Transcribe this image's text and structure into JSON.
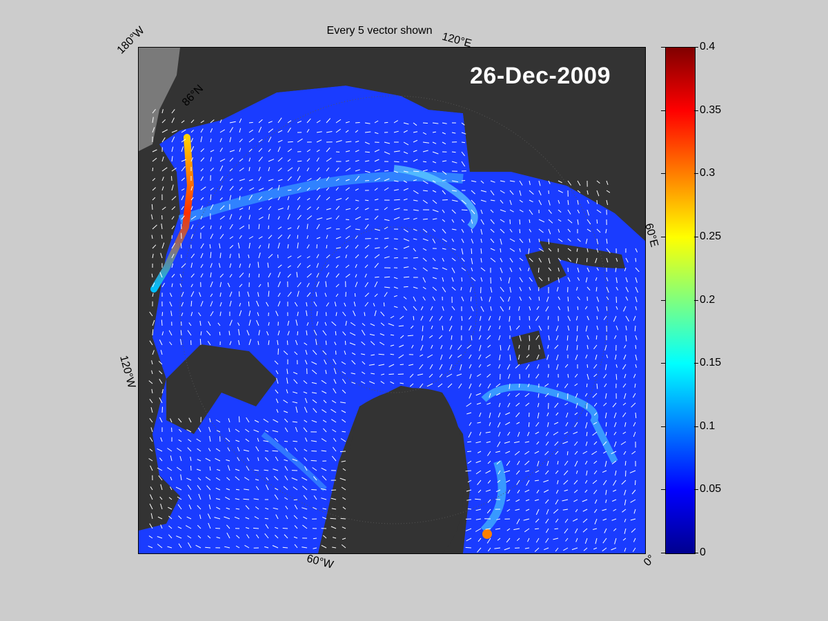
{
  "title": "Every 5 vector shown",
  "date": "26-Dec-2009",
  "map_labels": {
    "lon_180W": "180°W",
    "lon_120E": "120°E",
    "lon_60E": "60°E",
    "lon_120W": "120°W",
    "lon_60W": "60°W",
    "lon_0": "0°",
    "lat_86N": "86°N"
  },
  "colorbar": {
    "min": 0,
    "max": 0.4,
    "ticks": [
      "0.4",
      "0.35",
      "0.3",
      "0.25",
      "0.2",
      "0.15",
      "0.1",
      "0.05",
      "0"
    ],
    "colormap": "jet"
  },
  "colors": {
    "background": "#cccccc",
    "land": "#333333",
    "land_light": "#7a7a7a",
    "ocean_base": "#1a3cff",
    "vector": "#ffffff"
  }
}
